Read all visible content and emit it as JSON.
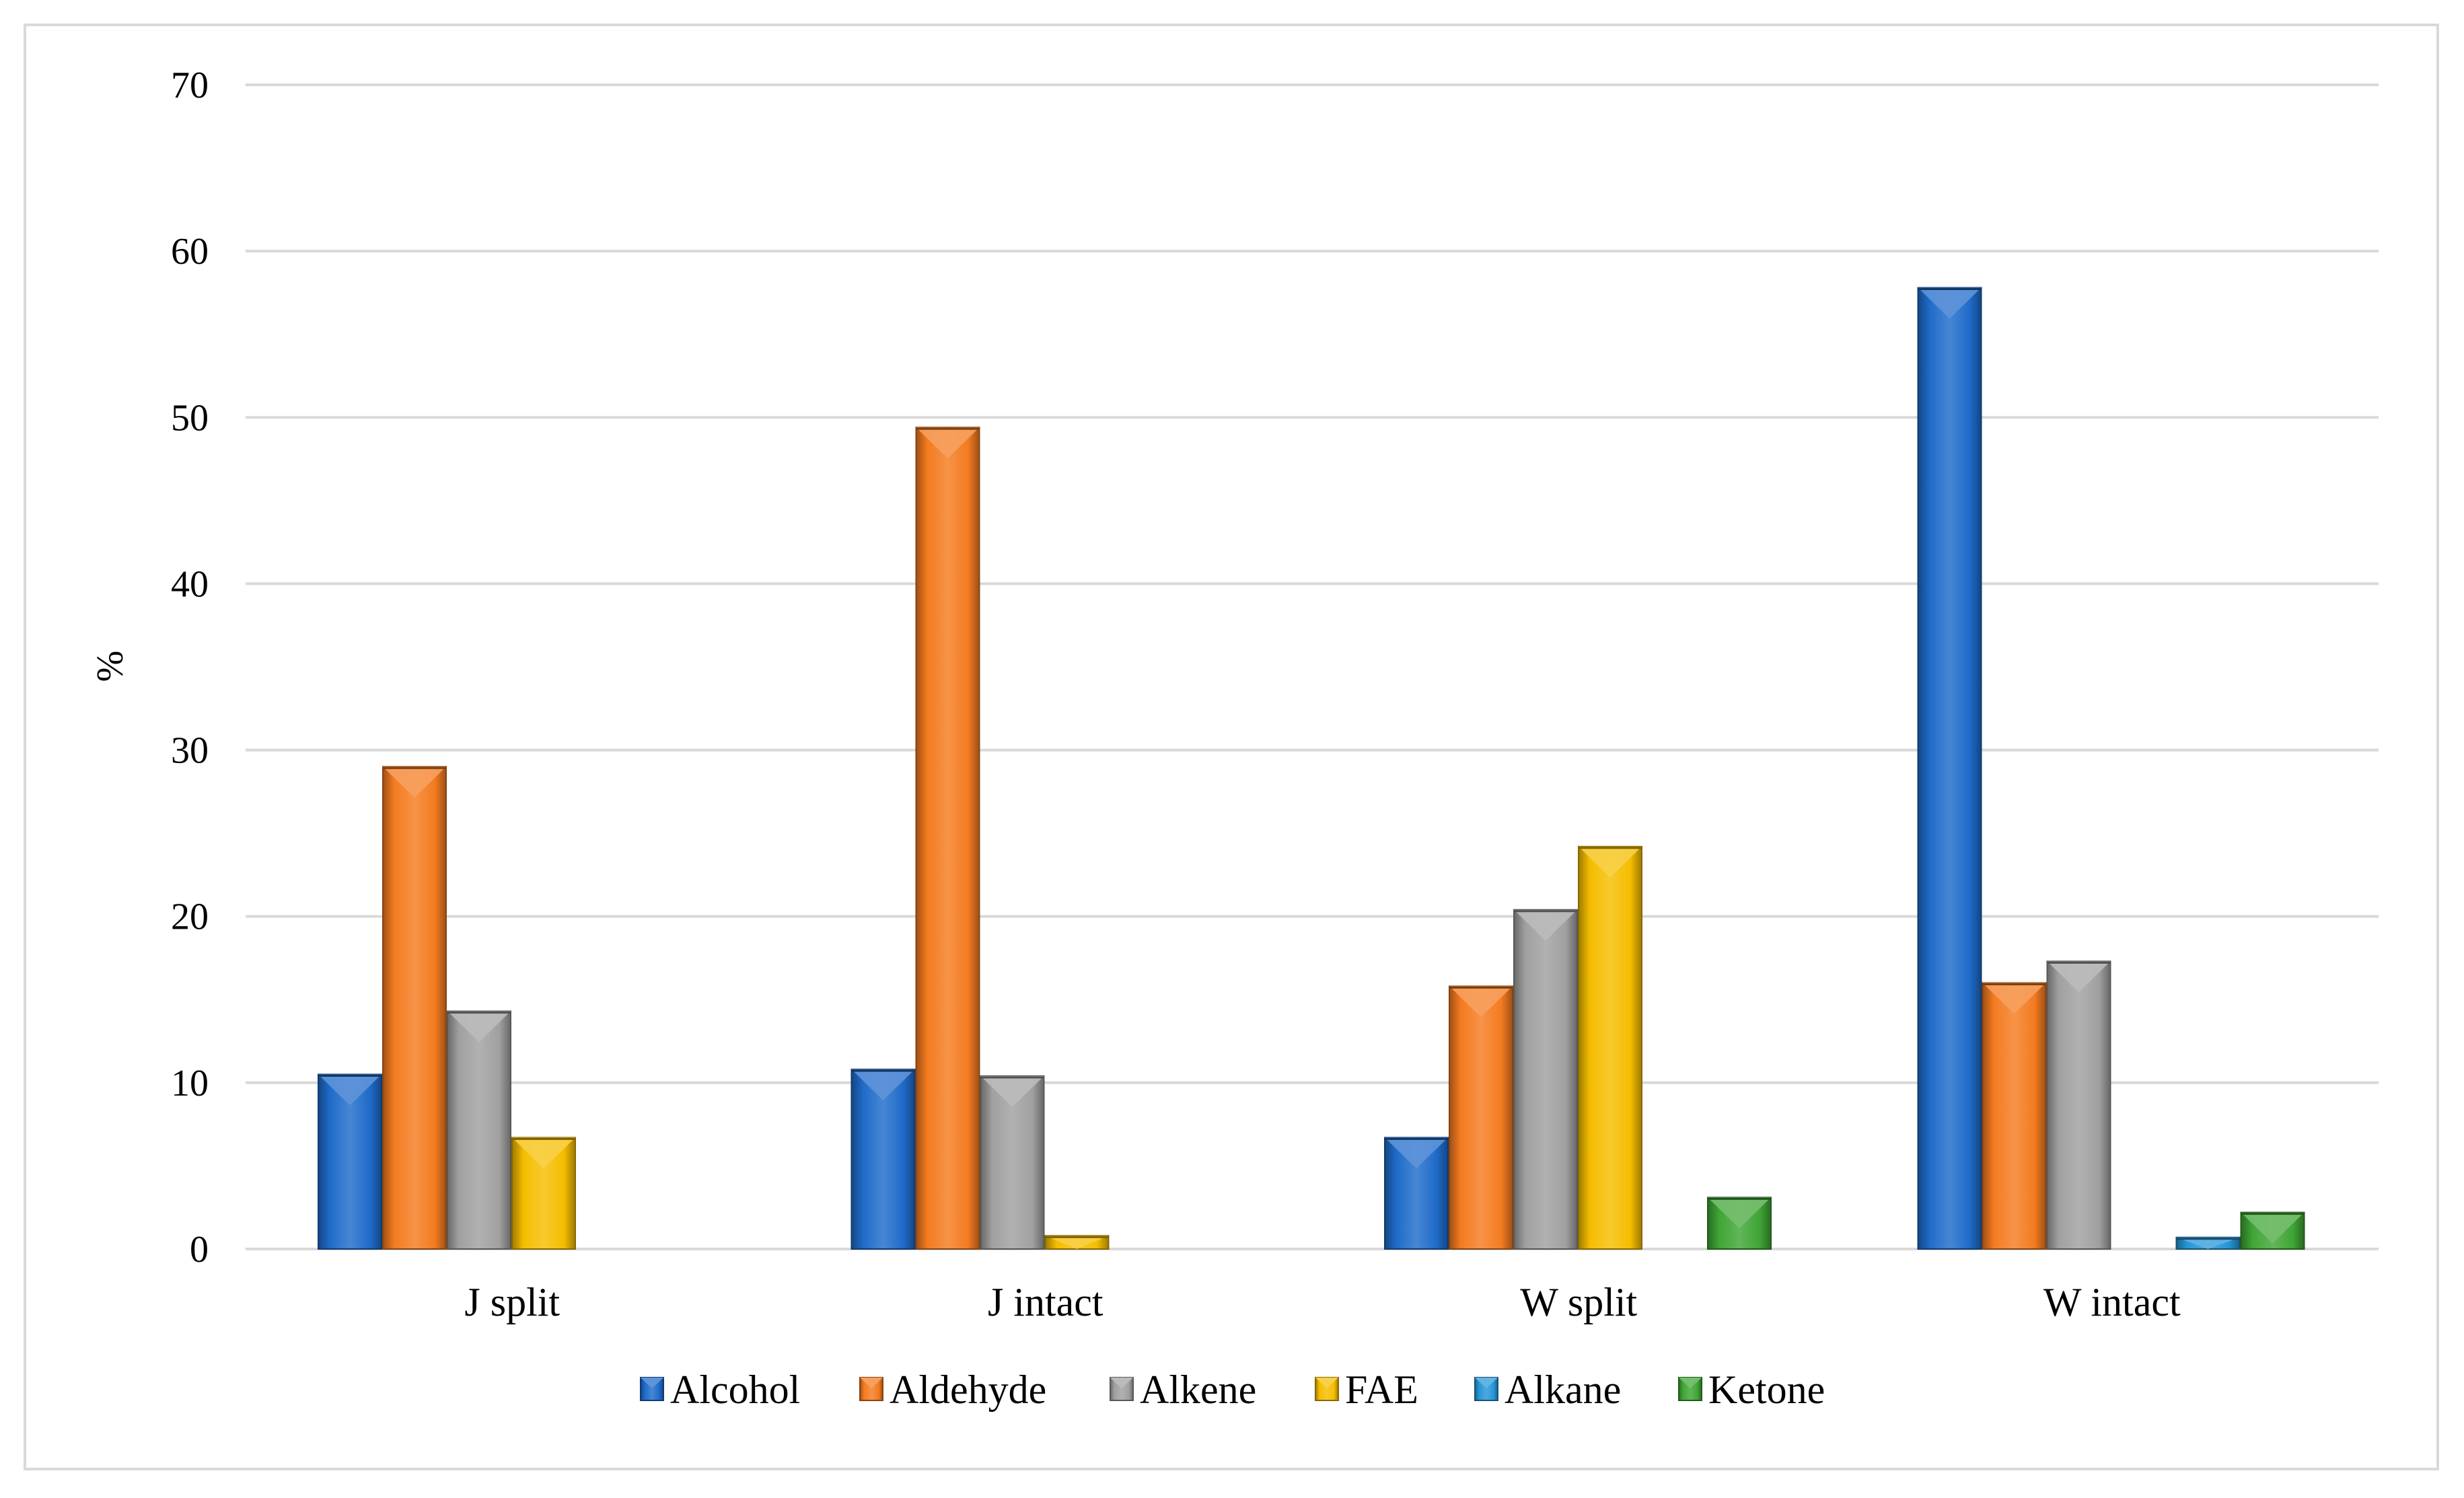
{
  "chart_data": {
    "type": "bar",
    "title": "",
    "xlabel": "",
    "ylabel": "%",
    "ylim": [
      0,
      70
    ],
    "yticks": [
      0,
      10,
      20,
      30,
      40,
      50,
      60,
      70
    ],
    "grid": true,
    "legend_position": "bottom",
    "categories": [
      "J split",
      "J intact",
      "W split",
      "W intact"
    ],
    "series": [
      {
        "name": "Alcohol",
        "color": "#1f6bc9",
        "values": [
          10.5,
          10.8,
          6.7,
          57.8
        ]
      },
      {
        "name": "Aldehyde",
        "color": "#f47b20",
        "values": [
          29.0,
          49.4,
          15.8,
          16.0
        ]
      },
      {
        "name": "Alkene",
        "color": "#a0a0a0",
        "values": [
          14.3,
          10.4,
          20.4,
          17.3
        ]
      },
      {
        "name": "FAE",
        "color": "#f5bd00",
        "values": [
          6.7,
          0.8,
          24.2,
          0
        ]
      },
      {
        "name": "Alkane",
        "color": "#2796d8",
        "values": [
          0,
          0,
          0,
          0.7
        ]
      },
      {
        "name": "Ketone",
        "color": "#3fa535",
        "values": [
          0,
          0,
          3.1,
          2.2
        ]
      }
    ]
  }
}
